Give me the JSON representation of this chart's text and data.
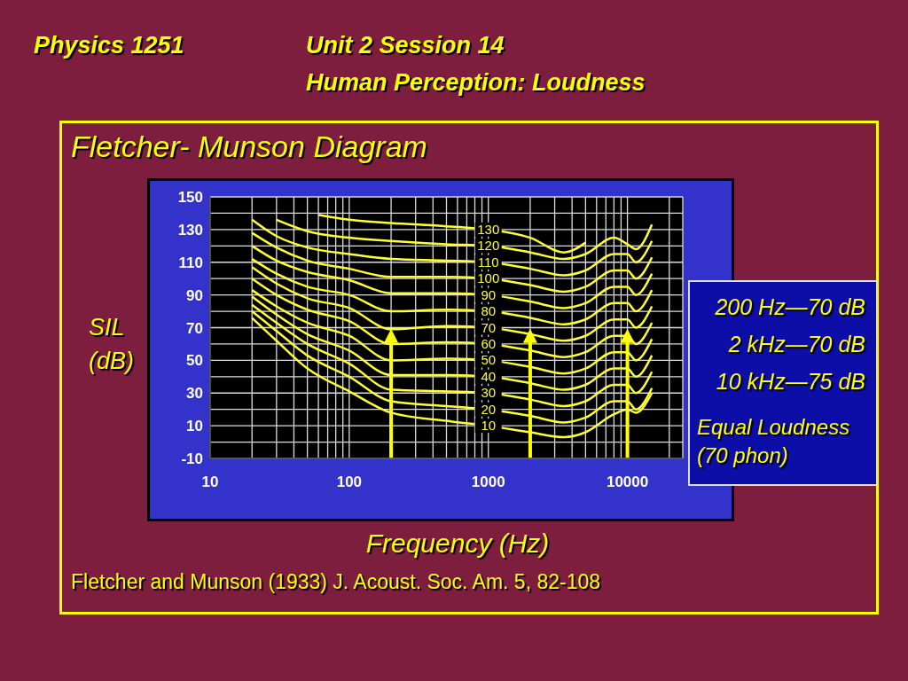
{
  "chart_data": {
    "type": "line",
    "title": "Fletcher- Munson Diagram",
    "xlabel": "Frequency (Hz)",
    "ylabel": "SIL (dB)",
    "annotations": [
      "Physics 1251",
      "Unit 2 Session 14",
      "Human Perception: Loudness",
      "200 Hz—70 dB",
      "2 kHz—70 dB",
      "10 kHz—75 dB",
      "Equal Loudness (70 phon)",
      "Fletcher and Munson (1933) J. Acoust. Soc. Am. 5, 82-108"
    ],
    "x": [
      20,
      30,
      50,
      100,
      200,
      500,
      1000,
      2000,
      3500,
      5000,
      8000,
      10000,
      11500,
      15000
    ],
    "series": [
      {
        "name": "130",
        "color": "#ffff33",
        "x": [
          60,
          100,
          200,
          500,
          1000,
          2000,
          3500,
          5000
        ],
        "values": [
          139,
          136,
          134,
          132,
          130,
          125,
          116,
          122
        ]
      },
      {
        "name": "120",
        "color": "#ffff33",
        "x": [
          30,
          50,
          100,
          200,
          500,
          1000,
          2000,
          3500,
          5000,
          8000,
          10000,
          11500,
          15000
        ],
        "values": [
          136,
          129,
          125,
          123,
          121,
          120,
          116,
          112,
          115,
          125,
          121,
          118,
          133
        ]
      },
      {
        "name": "110",
        "color": "#ffff33",
        "values": [
          136,
          126,
          119,
          115,
          112,
          111,
          110,
          106,
          102,
          105,
          115,
          115,
          110,
          123
        ]
      },
      {
        "name": "100",
        "color": "#ffff33",
        "values": [
          128,
          119,
          111,
          106,
          101,
          101,
          100,
          96,
          92,
          95,
          105,
          105,
          100,
          113
        ]
      },
      {
        "name": "90",
        "color": "#ffff33",
        "values": [
          120,
          111,
          104,
          99,
          91,
          91,
          90,
          86,
          82,
          85,
          95,
          95,
          90,
          103
        ]
      },
      {
        "name": "80",
        "color": "#ffff33",
        "values": [
          112,
          103,
          95,
          90,
          80,
          81,
          80,
          76,
          72,
          75,
          85,
          85,
          80,
          93
        ]
      },
      {
        "name": "70",
        "color": "#ffff33",
        "values": [
          107,
          97,
          88,
          82,
          69,
          71,
          70,
          66,
          62,
          65,
          75,
          75,
          70,
          83
        ]
      },
      {
        "name": "60",
        "color": "#ffff33",
        "values": [
          100,
          90,
          81,
          74,
          60,
          61,
          60,
          56,
          52,
          55,
          65,
          65,
          60,
          73
        ]
      },
      {
        "name": "50",
        "color": "#ffff33",
        "values": [
          93,
          83,
          73,
          65,
          50,
          51,
          50,
          46,
          42,
          45,
          55,
          55,
          50,
          63
        ]
      },
      {
        "name": "40",
        "color": "#ffff33",
        "values": [
          89,
          78,
          66,
          56,
          41,
          41,
          40,
          36,
          32,
          35,
          45,
          45,
          40,
          53
        ]
      },
      {
        "name": "30",
        "color": "#ffff33",
        "values": [
          84,
          73,
          60,
          48,
          32,
          31,
          30,
          26,
          22,
          25,
          35,
          35,
          30,
          43
        ]
      },
      {
        "name": "20",
        "color": "#ffff33",
        "values": [
          80,
          68,
          53,
          40,
          25,
          22,
          20,
          16,
          12,
          15,
          25,
          25,
          20,
          33
        ]
      },
      {
        "name": "10",
        "color": "#ffff33",
        "values": [
          76,
          62,
          45,
          31,
          18,
          13,
          10,
          6,
          3,
          6,
          17,
          20,
          18,
          30
        ]
      }
    ],
    "log": "x",
    "xlim": [
      10,
      25000
    ],
    "xticks": [
      10,
      {
        "value": 20,
        "label": null
      },
      {
        "value": 30,
        "label": null
      },
      {
        "value": 40,
        "label": null
      },
      {
        "value": 50,
        "label": null
      },
      {
        "value": 60,
        "label": null
      },
      {
        "value": 70,
        "label": null
      },
      {
        "value": 80,
        "label": null
      },
      {
        "value": 90,
        "label": null
      },
      100,
      {
        "value": 200,
        "label": null
      },
      {
        "value": 300,
        "label": null
      },
      {
        "value": 400,
        "label": null
      },
      {
        "value": 500,
        "label": null
      },
      {
        "value": 600,
        "label": null
      },
      {
        "value": 700,
        "label": null
      },
      {
        "value": 800,
        "label": null
      },
      {
        "value": 900,
        "label": null
      },
      1000,
      {
        "value": 2000,
        "label": null
      },
      {
        "value": 3000,
        "label": null
      },
      {
        "value": 4000,
        "label": null
      },
      {
        "value": 5000,
        "label": null
      },
      {
        "value": 6000,
        "label": null
      },
      {
        "value": 7000,
        "label": null
      },
      {
        "value": 8000,
        "label": null
      },
      {
        "value": 9000,
        "label": null
      },
      10000,
      {
        "value": 20000,
        "label": null
      }
    ],
    "ylim": [
      -10,
      150
    ],
    "yticks": [
      -10,
      {
        "value": 0,
        "label": null
      },
      10,
      {
        "value": 20,
        "label": null
      },
      30,
      {
        "value": 40,
        "label": null
      },
      50,
      {
        "value": 60,
        "label": null
      },
      70,
      {
        "value": 80,
        "label": null
      },
      90,
      {
        "value": 100,
        "label": null
      },
      110,
      {
        "value": 120,
        "label": null
      },
      130,
      {
        "value": 140,
        "label": null
      },
      150
    ],
    "ref_lines": [
      {
        "axis": "x",
        "value": 200,
        "color": "#ffff00"
      },
      {
        "axis": "x",
        "value": 2000,
        "color": "#ffff00"
      },
      {
        "axis": "x",
        "value": 10000,
        "color": "#ffff00"
      }
    ],
    "grid": true,
    "legend": false
  }
}
